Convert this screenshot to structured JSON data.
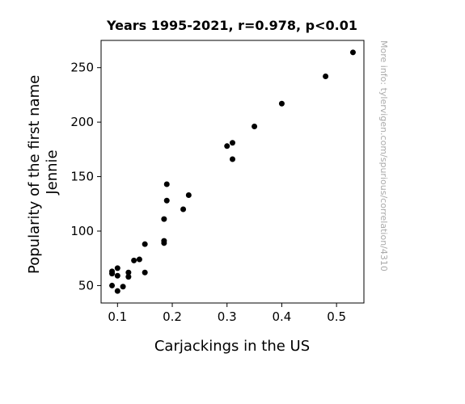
{
  "chart_data": {
    "type": "scatter",
    "title": "Years 1995-2021, r=0.978, p<0.01",
    "xlabel": "Carjackings in the US",
    "ylabel_lines": [
      "Popularity of the first name",
      "Jennie"
    ],
    "xlim": [
      0.07,
      0.55
    ],
    "ylim": [
      34,
      275
    ],
    "xticks": [
      0.1,
      0.2,
      0.3,
      0.4,
      0.5
    ],
    "xtick_labels": [
      "0.1",
      "0.2",
      "0.3",
      "0.4",
      "0.5"
    ],
    "yticks": [
      50,
      100,
      150,
      200,
      250
    ],
    "ytick_labels": [
      "50",
      "100",
      "150",
      "200",
      "250"
    ],
    "grid": false,
    "point_color": "#000000",
    "points": [
      {
        "x": 0.53,
        "y": 264
      },
      {
        "x": 0.48,
        "y": 242
      },
      {
        "x": 0.4,
        "y": 217
      },
      {
        "x": 0.35,
        "y": 196
      },
      {
        "x": 0.31,
        "y": 181
      },
      {
        "x": 0.3,
        "y": 178
      },
      {
        "x": 0.31,
        "y": 166
      },
      {
        "x": 0.19,
        "y": 143
      },
      {
        "x": 0.23,
        "y": 133
      },
      {
        "x": 0.19,
        "y": 128
      },
      {
        "x": 0.22,
        "y": 120
      },
      {
        "x": 0.185,
        "y": 111
      },
      {
        "x": 0.185,
        "y": 91
      },
      {
        "x": 0.185,
        "y": 89
      },
      {
        "x": 0.15,
        "y": 88
      },
      {
        "x": 0.14,
        "y": 74
      },
      {
        "x": 0.13,
        "y": 73
      },
      {
        "x": 0.1,
        "y": 66
      },
      {
        "x": 0.09,
        "y": 63
      },
      {
        "x": 0.12,
        "y": 62
      },
      {
        "x": 0.15,
        "y": 62
      },
      {
        "x": 0.09,
        "y": 61
      },
      {
        "x": 0.1,
        "y": 59
      },
      {
        "x": 0.12,
        "y": 58
      },
      {
        "x": 0.09,
        "y": 50
      },
      {
        "x": 0.11,
        "y": 49
      },
      {
        "x": 0.1,
        "y": 45
      }
    ]
  },
  "watermark": "More info: tylervigen.com/spurious/correlation/4310"
}
